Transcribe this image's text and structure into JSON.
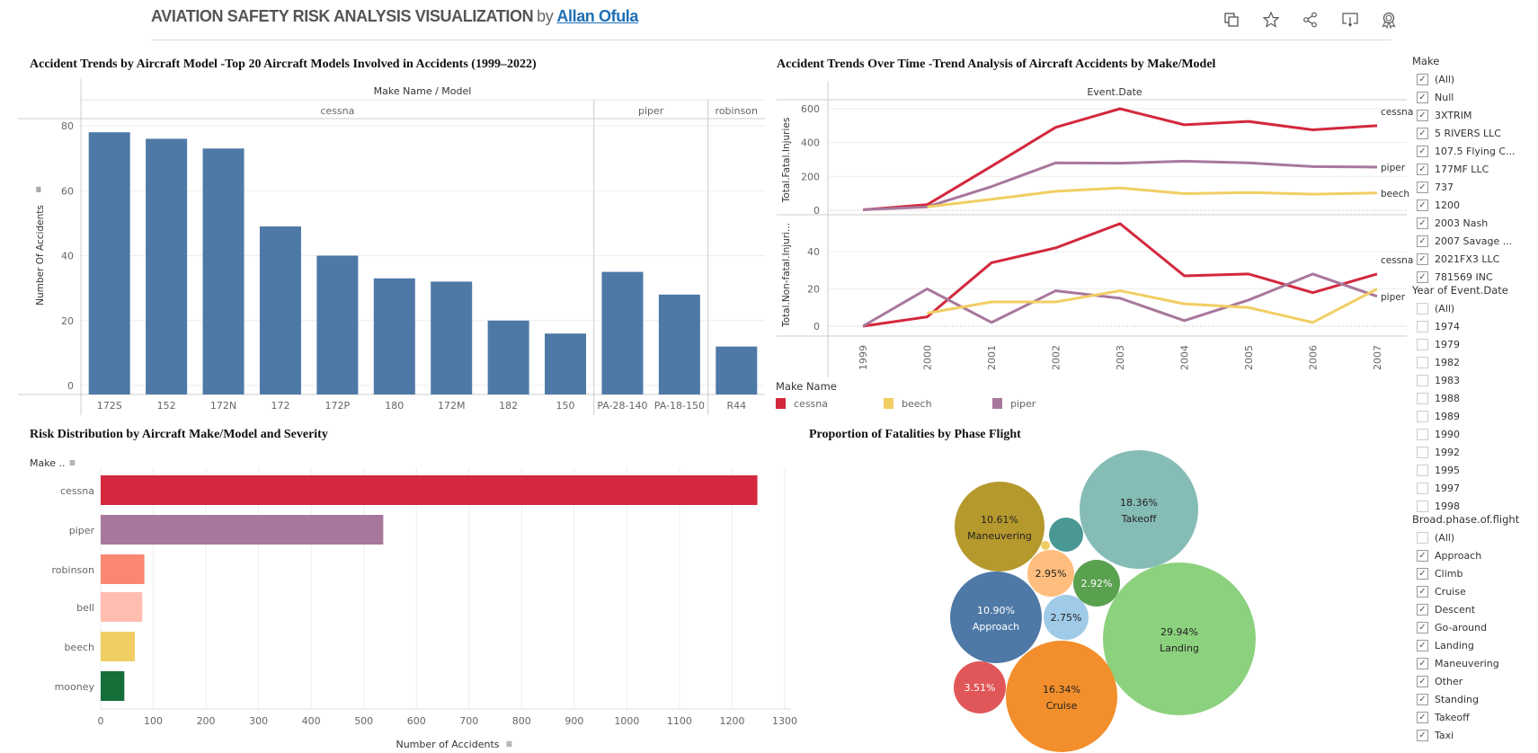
{
  "header": {
    "title": "AVIATION SAFETY RISK ANALYSIS VISUALIZATION",
    "by": "by",
    "author": "Allan Ofula",
    "icons": [
      "duplicate-icon",
      "favorite-star-icon",
      "share-icon",
      "download-icon",
      "award-badge-icon"
    ]
  },
  "colors": {
    "bar_blue": "#4e79a7",
    "cessna": "#d3283d",
    "piper": "#a8779c",
    "beech": "#f1ce63",
    "robinson": "#fa8771",
    "bell": "#ffbdb0",
    "mooney": "#166f38"
  },
  "chart_data": [
    {
      "type": "bar",
      "title": "Accident Trends by Aircraft Model -Top 20 Aircraft Models Involved in Accidents (1999–2022)",
      "column_header": "Make Name / Model",
      "groups": [
        {
          "name": "cessna",
          "categories": [
            "172S",
            "152",
            "172N",
            "172",
            "172P",
            "180",
            "172M",
            "182",
            "150"
          ],
          "values": [
            78,
            76,
            73,
            49,
            40,
            33,
            32,
            20,
            16
          ]
        },
        {
          "name": "piper",
          "categories": [
            "PA-28-140",
            "PA-18-150"
          ],
          "values": [
            35,
            28
          ]
        },
        {
          "name": "robinson",
          "categories": [
            "R44"
          ],
          "values": [
            12
          ]
        }
      ],
      "ylabel": "Number Of Accidents",
      "yticks": [
        0,
        20,
        40,
        60,
        80
      ],
      "ylim": [
        0,
        80
      ],
      "grid": true
    },
    {
      "type": "line",
      "title": "Accident Trends Over Time -Trend Analysis of Aircraft Accidents by Make/Model",
      "column_header": "Event.Date",
      "x": [
        "1999",
        "2000",
        "2001",
        "2002",
        "2003",
        "2004",
        "2005",
        "2006",
        "2007"
      ],
      "legend_title": "Make Name",
      "legend_placement": "bottom",
      "panels": [
        {
          "ylabel": "Total.Fatal.Injuries",
          "yticks": [
            0,
            200,
            400,
            600
          ],
          "ylim": [
            0,
            620
          ],
          "series": [
            {
              "name": "cessna",
              "values": [
                3,
                33,
                260,
                490,
                600,
                505,
                525,
                475,
                500
              ]
            },
            {
              "name": "piper",
              "values": [
                3,
                20,
                140,
                280,
                278,
                290,
                280,
                258,
                255
              ]
            },
            {
              "name": "beech",
              "values": [
                null,
                20,
                65,
                112,
                132,
                98,
                105,
                95,
                102
              ]
            }
          ]
        },
        {
          "ylabel": "Total.Non-fatal.Injuri...",
          "yticks": [
            0,
            20,
            40
          ],
          "ylim": [
            0,
            57
          ],
          "series": [
            {
              "name": "cessna",
              "values": [
                0,
                5,
                34,
                42,
                55,
                27,
                28,
                18,
                28
              ]
            },
            {
              "name": "piper",
              "values": [
                0,
                20,
                2,
                19,
                15,
                3,
                14,
                28,
                16
              ]
            },
            {
              "name": "beech",
              "values": [
                null,
                7,
                13,
                13,
                19,
                12,
                10,
                2,
                20
              ]
            }
          ]
        }
      ],
      "end_labels": [
        [
          "cessna",
          "piper",
          "beech"
        ],
        [
          "cessna",
          "piper"
        ]
      ],
      "legend": [
        "cessna",
        "beech",
        "piper"
      ]
    },
    {
      "type": "bar",
      "orientation": "horizontal",
      "title": "Risk Distribution by Aircraft  Make/Model and Severity",
      "ylabel": "Make ..",
      "categories": [
        "cessna",
        "piper",
        "robinson",
        "bell",
        "beech",
        "mooney"
      ],
      "values": [
        1248,
        537,
        83,
        79,
        65,
        45
      ],
      "xlabel": "Number of Accidents",
      "xticks": [
        0,
        100,
        200,
        300,
        400,
        500,
        600,
        700,
        800,
        900,
        1000,
        1100,
        1200,
        1300
      ],
      "xlim": [
        0,
        1300
      ],
      "grid": true
    },
    {
      "type": "bubble",
      "title": "Proportion of Fatalities by Phase Flight",
      "bubbles": [
        {
          "label": "Takeoff",
          "percent": "18.36%",
          "value": 18.36,
          "color": "#86bcb6",
          "text_color": "#222"
        },
        {
          "label": "Maneuvering",
          "percent": "10.61%",
          "value": 10.61,
          "color": "#b6992d",
          "text_color": "#222"
        },
        {
          "label": "",
          "percent": "",
          "value": 1.5,
          "color": "#499894",
          "text_color": "#fff"
        },
        {
          "label": "",
          "percent": "",
          "value": 0.1,
          "color": "#f1ce63",
          "text_color": "#222"
        },
        {
          "label": "",
          "percent": "2.95%",
          "value": 2.95,
          "color": "#ffbe7d",
          "text_color": "#222"
        },
        {
          "label": "",
          "percent": "2.92%",
          "value": 2.92,
          "color": "#59a14f",
          "text_color": "#fff"
        },
        {
          "label": "Approach",
          "percent": "10.90%",
          "value": 10.9,
          "color": "#4e79a7",
          "text_color": "#fff"
        },
        {
          "label": "",
          "percent": "2.75%",
          "value": 2.75,
          "color": "#a0cbe8",
          "text_color": "#222"
        },
        {
          "label": "Landing",
          "percent": "29.94%",
          "value": 29.94,
          "color": "#8cd17d",
          "text_color": "#222"
        },
        {
          "label": "",
          "percent": "3.51%",
          "value": 3.51,
          "color": "#e15759",
          "text_color": "#fff"
        },
        {
          "label": "Cruise",
          "percent": "16.34%",
          "value": 16.34,
          "color": "#f28e2b",
          "text_color": "#222"
        }
      ]
    }
  ],
  "filters": [
    {
      "title": "Make",
      "items": [
        {
          "label": "(All)",
          "checked": true
        },
        {
          "label": "Null",
          "checked": true
        },
        {
          "label": "3XTRIM",
          "checked": true
        },
        {
          "label": "5 RIVERS LLC",
          "checked": true
        },
        {
          "label": "107.5 Flying C...",
          "checked": true
        },
        {
          "label": "177MF LLC",
          "checked": true
        },
        {
          "label": "737",
          "checked": true
        },
        {
          "label": "1200",
          "checked": true
        },
        {
          "label": "2003 Nash",
          "checked": true
        },
        {
          "label": "2007 Savage ...",
          "checked": true
        },
        {
          "label": "2021FX3 LLC",
          "checked": true
        },
        {
          "label": "781569 INC",
          "checked": true
        }
      ]
    },
    {
      "title": "Year of Event.Date",
      "items": [
        {
          "label": "(All)",
          "checked": false
        },
        {
          "label": "1974",
          "checked": false
        },
        {
          "label": "1979",
          "checked": false
        },
        {
          "label": "1982",
          "checked": false
        },
        {
          "label": "1983",
          "checked": false
        },
        {
          "label": "1988",
          "checked": false
        },
        {
          "label": "1989",
          "checked": false
        },
        {
          "label": "1990",
          "checked": false
        },
        {
          "label": "1992",
          "checked": false
        },
        {
          "label": "1995",
          "checked": false
        },
        {
          "label": "1997",
          "checked": false
        },
        {
          "label": "1998",
          "checked": false
        }
      ]
    },
    {
      "title": "Broad.phase.of.flight",
      "items": [
        {
          "label": "(All)",
          "checked": false
        },
        {
          "label": "Approach",
          "checked": true
        },
        {
          "label": "Climb",
          "checked": true
        },
        {
          "label": "Cruise",
          "checked": true
        },
        {
          "label": "Descent",
          "checked": true
        },
        {
          "label": "Go-around",
          "checked": true
        },
        {
          "label": "Landing",
          "checked": true
        },
        {
          "label": "Maneuvering",
          "checked": true
        },
        {
          "label": "Other",
          "checked": true
        },
        {
          "label": "Standing",
          "checked": true
        },
        {
          "label": "Takeoff",
          "checked": true
        },
        {
          "label": "Taxi",
          "checked": true
        }
      ]
    }
  ]
}
